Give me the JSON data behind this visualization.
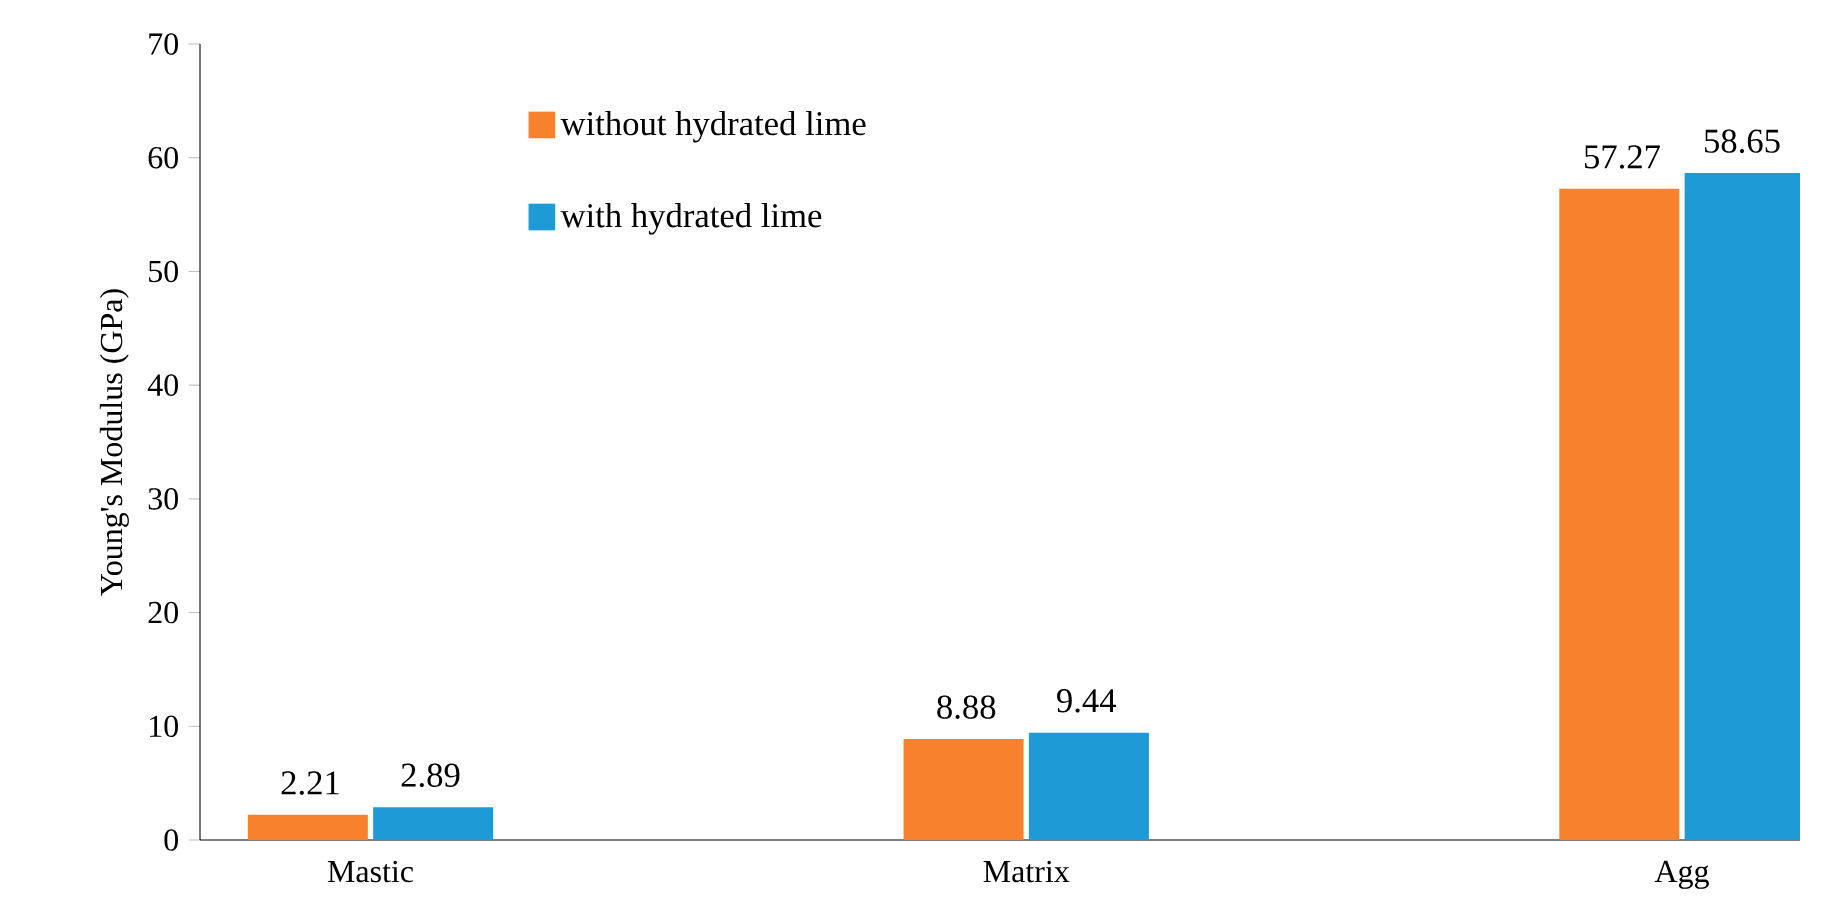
{
  "chart_data": {
    "type": "bar",
    "ylabel": "Young's Modulus (GPa)",
    "categories": [
      "Mastic",
      "Matrix",
      "Agg"
    ],
    "series": [
      {
        "name": "without hydrated lime",
        "color": "#f7812c",
        "values": [
          2.21,
          8.88,
          57.27
        ]
      },
      {
        "name": "with hydrated lime",
        "color": "#1e9bd7",
        "values": [
          2.89,
          9.44,
          58.65
        ]
      }
    ],
    "ylim": [
      0,
      70
    ],
    "yticks": [
      0,
      10,
      20,
      30,
      40,
      50,
      60,
      70
    ],
    "data_labels": true,
    "grid": false,
    "legend": "top left"
  }
}
